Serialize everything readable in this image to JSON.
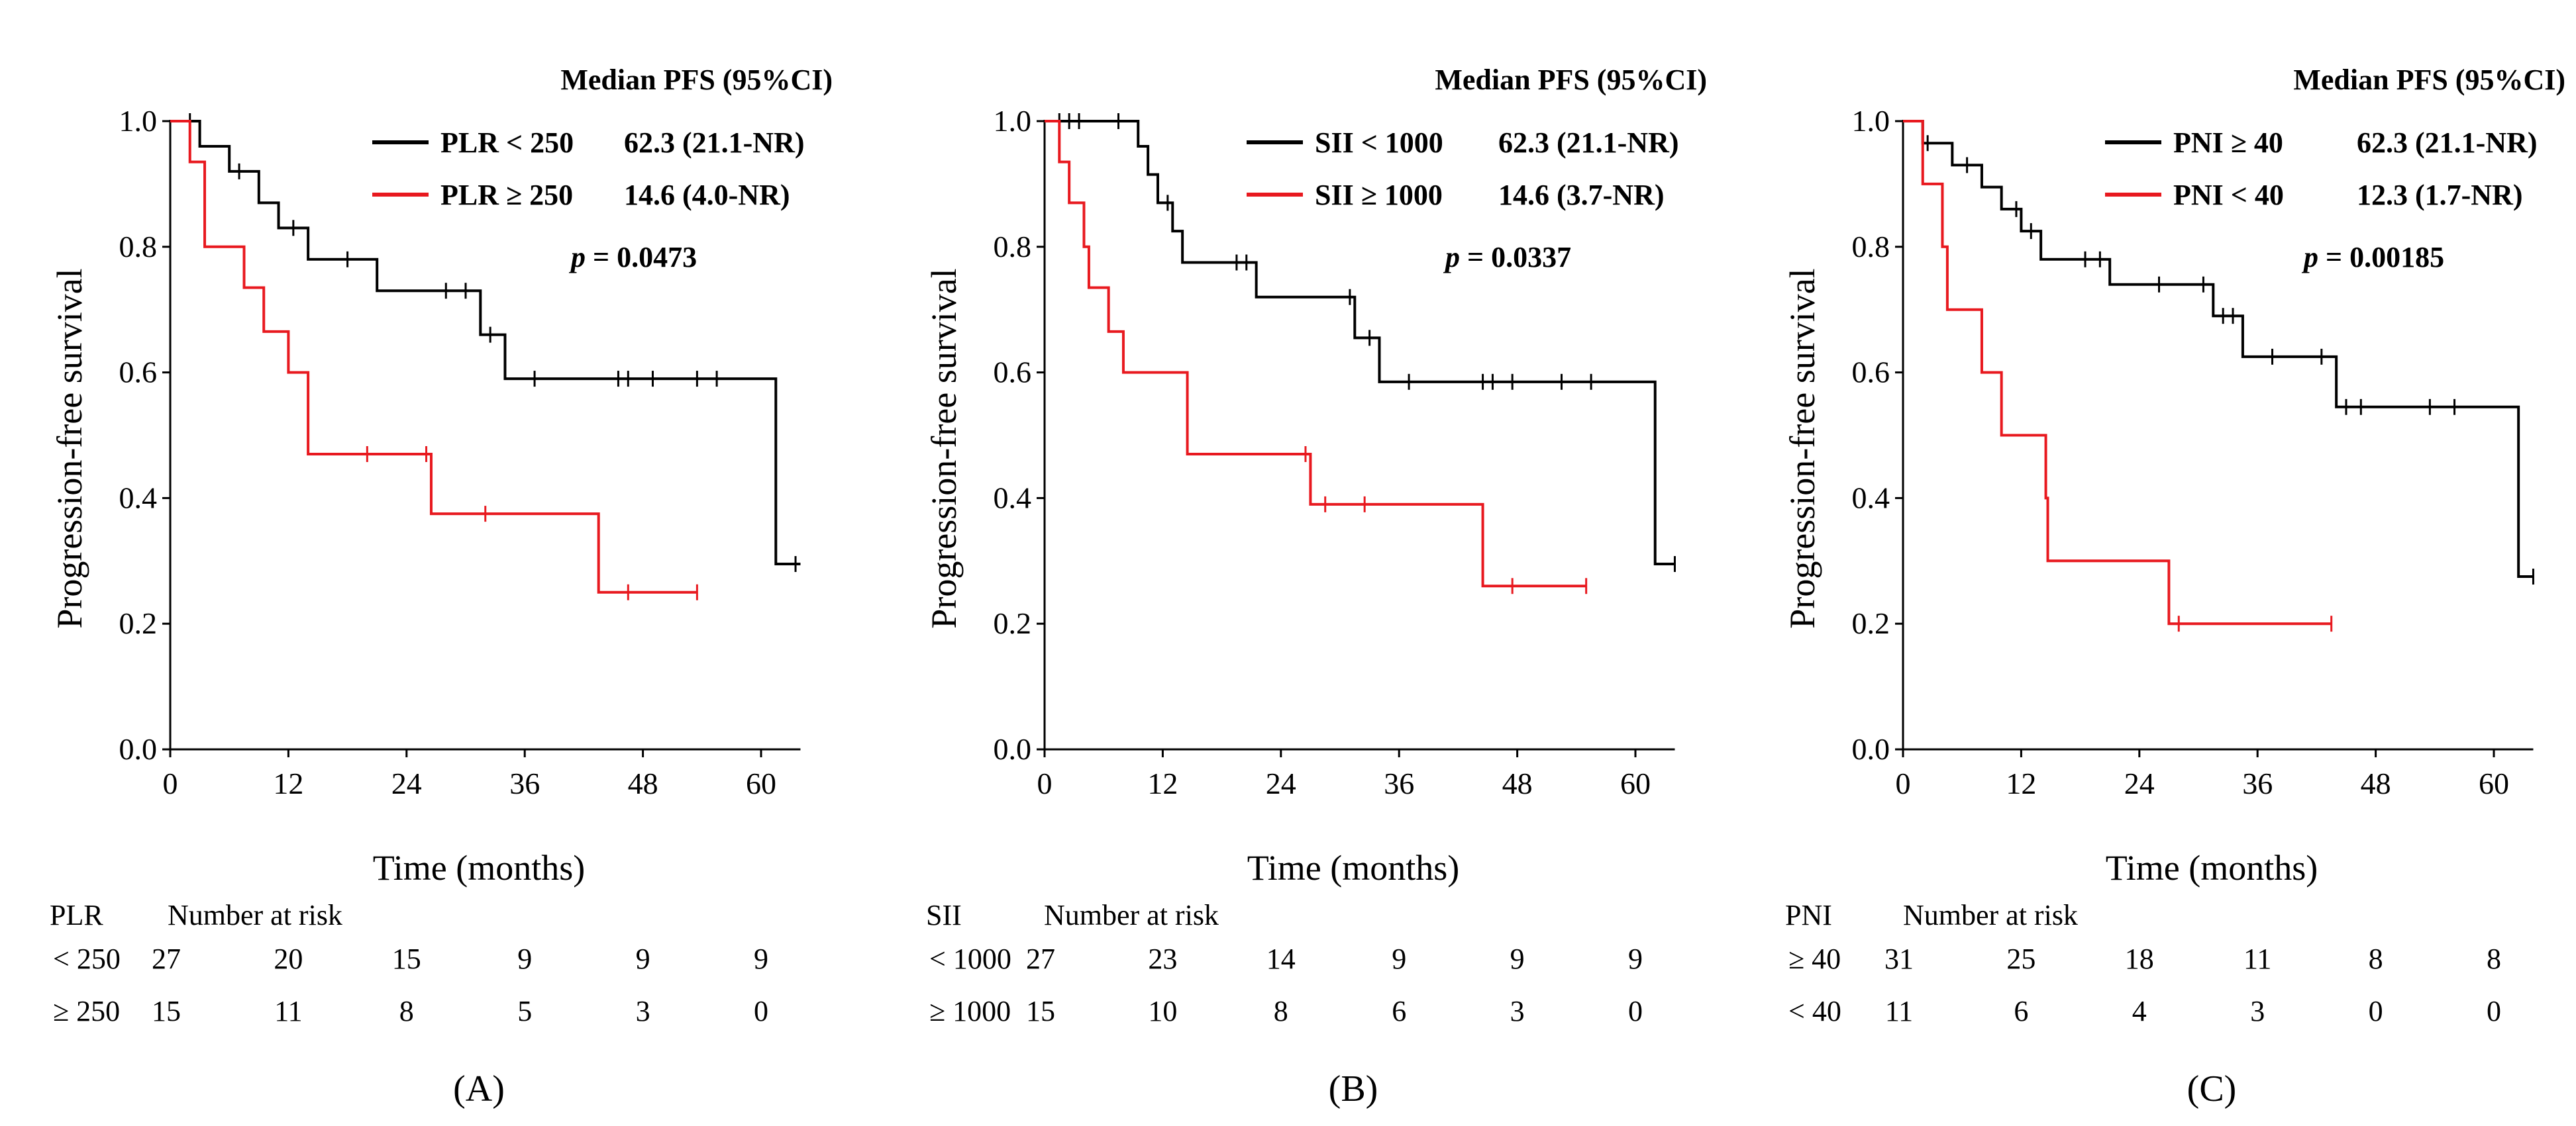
{
  "chart_data": [
    {
      "type": "line",
      "subtype": "kaplan-meier",
      "panel_label": "(A)",
      "xlabel": "Time (months)",
      "ylabel": "Progression-free survival",
      "xlim": [
        0,
        64
      ],
      "ylim": [
        0,
        1.0
      ],
      "x_ticks": [
        "0",
        "12",
        "24",
        "36",
        "48",
        "60"
      ],
      "y_ticks": [
        "0.0",
        "0.2",
        "0.4",
        "0.6",
        "0.8",
        "1.0"
      ],
      "legend_title": "Median PFS  (95%CI)",
      "p_label": "p",
      "p_value": "= 0.0473",
      "series": [
        {
          "name": "PLR < 250",
          "median": "62.3 (21.1-NR)",
          "color": "#000000",
          "steps": [
            [
              0,
              1.0
            ],
            [
              3,
              0.96
            ],
            [
              6,
              0.92
            ],
            [
              9,
              0.87
            ],
            [
              11,
              0.83
            ],
            [
              14,
              0.78
            ],
            [
              21,
              0.73
            ],
            [
              31.5,
              0.66
            ],
            [
              34,
              0.59
            ],
            [
              61.5,
              0.295
            ],
            [
              64,
              0.295
            ]
          ],
          "censors": [
            [
              2,
              1.0
            ],
            [
              7,
              0.92
            ],
            [
              12.5,
              0.83
            ],
            [
              18,
              0.78
            ],
            [
              28,
              0.73
            ],
            [
              30,
              0.73
            ],
            [
              32.5,
              0.66
            ],
            [
              37,
              0.59
            ],
            [
              45.5,
              0.59
            ],
            [
              46.5,
              0.59
            ],
            [
              49,
              0.59
            ],
            [
              53.5,
              0.59
            ],
            [
              55.5,
              0.59
            ],
            [
              63.5,
              0.295
            ]
          ]
        },
        {
          "name": "PLR ≥ 250",
          "median": "14.6 (4.0-NR)",
          "color": "#e8191f",
          "steps": [
            [
              0,
              1.0
            ],
            [
              2,
              0.935
            ],
            [
              3.5,
              0.8
            ],
            [
              7.5,
              0.735
            ],
            [
              9.5,
              0.665
            ],
            [
              12,
              0.6
            ],
            [
              14,
              0.47
            ],
            [
              26.5,
              0.375
            ],
            [
              43.5,
              0.25
            ],
            [
              53.5,
              0.25
            ]
          ],
          "censors": [
            [
              20,
              0.47
            ],
            [
              26,
              0.47
            ],
            [
              32,
              0.375
            ],
            [
              46.5,
              0.25
            ],
            [
              53.5,
              0.25
            ]
          ]
        }
      ],
      "risk_table": {
        "variable": "PLR",
        "header": "Number  at risk",
        "times": [
          0,
          12,
          24,
          36,
          48,
          60
        ],
        "rows": [
          {
            "label": "< 250",
            "values": [
              "27",
              "20",
              "15",
              "9",
              "9",
              "9"
            ]
          },
          {
            "label": "≥ 250",
            "values": [
              "15",
              "11",
              "8",
              "5",
              "3",
              "0"
            ]
          }
        ]
      }
    },
    {
      "type": "line",
      "subtype": "kaplan-meier",
      "panel_label": "(B)",
      "xlabel": "Time (months)",
      "ylabel": "Progression-free survival",
      "xlim": [
        0,
        64
      ],
      "ylim": [
        0,
        1.0
      ],
      "x_ticks": [
        "0",
        "12",
        "24",
        "36",
        "48",
        "60"
      ],
      "y_ticks": [
        "0.0",
        "0.2",
        "0.4",
        "0.6",
        "0.8",
        "1.0"
      ],
      "legend_title": "Median PFS  (95%CI)",
      "p_label": "p",
      "p_value": "= 0.0337",
      "series": [
        {
          "name": "SII < 1000",
          "median": "62.3 (21.1-NR)",
          "color": "#000000",
          "steps": [
            [
              0,
              1.0
            ],
            [
              9.5,
              0.96
            ],
            [
              10.5,
              0.915
            ],
            [
              11.5,
              0.87
            ],
            [
              13,
              0.825
            ],
            [
              14,
              0.775
            ],
            [
              21.5,
              0.72
            ],
            [
              31.5,
              0.655
            ],
            [
              34,
              0.585
            ],
            [
              62,
              0.295
            ],
            [
              64,
              0.295
            ]
          ],
          "censors": [
            [
              1.5,
              1.0
            ],
            [
              2.5,
              1.0
            ],
            [
              3.5,
              1.0
            ],
            [
              7.5,
              1.0
            ],
            [
              12.5,
              0.87
            ],
            [
              19.5,
              0.775
            ],
            [
              20.5,
              0.775
            ],
            [
              31,
              0.72
            ],
            [
              33,
              0.655
            ],
            [
              37,
              0.585
            ],
            [
              44.5,
              0.585
            ],
            [
              45.5,
              0.585
            ],
            [
              47.5,
              0.585
            ],
            [
              52.5,
              0.585
            ],
            [
              55.5,
              0.585
            ],
            [
              64,
              0.295
            ]
          ]
        },
        {
          "name": "SII ≥ 1000",
          "median": "14.6 (3.7-NR)",
          "color": "#e8191f",
          "steps": [
            [
              0,
              1.0
            ],
            [
              1.5,
              0.935
            ],
            [
              2.5,
              0.87
            ],
            [
              4,
              0.8
            ],
            [
              4.5,
              0.735
            ],
            [
              6.5,
              0.665
            ],
            [
              8,
              0.6
            ],
            [
              14.5,
              0.47
            ],
            [
              27,
              0.39
            ],
            [
              44.5,
              0.26
            ],
            [
              55,
              0.26
            ]
          ],
          "censors": [
            [
              26.5,
              0.47
            ],
            [
              28.5,
              0.39
            ],
            [
              32.5,
              0.39
            ],
            [
              47.5,
              0.26
            ],
            [
              55,
              0.26
            ]
          ]
        }
      ],
      "risk_table": {
        "variable": "SII",
        "header": "Number  at risk",
        "times": [
          0,
          12,
          24,
          36,
          48,
          60
        ],
        "rows": [
          {
            "label": "< 1000",
            "values": [
              "27",
              "23",
              "14",
              "9",
              "9",
              "9"
            ]
          },
          {
            "label": "≥ 1000",
            "values": [
              "15",
              "10",
              "8",
              "6",
              "3",
              "0"
            ]
          }
        ]
      }
    },
    {
      "type": "line",
      "subtype": "kaplan-meier",
      "panel_label": "(C)",
      "xlabel": "Time (months)",
      "ylabel": "Progression-free survival",
      "xlim": [
        0,
        64
      ],
      "ylim": [
        0,
        1.0
      ],
      "x_ticks": [
        "0",
        "12",
        "24",
        "36",
        "48",
        "60"
      ],
      "y_ticks": [
        "0.0",
        "0.2",
        "0.4",
        "0.6",
        "0.8",
        "1.0"
      ],
      "legend_title": "Median PFS  (95%CI)",
      "p_label": "p",
      "p_value": "= 0.00185",
      "series": [
        {
          "name": "PNI ≥ 40",
          "median": "62.3 (21.1-NR)",
          "color": "#000000",
          "steps": [
            [
              0,
              1.0
            ],
            [
              2,
              0.965
            ],
            [
              5,
              0.93
            ],
            [
              8,
              0.895
            ],
            [
              10,
              0.86
            ],
            [
              12,
              0.825
            ],
            [
              14,
              0.78
            ],
            [
              21,
              0.74
            ],
            [
              31.5,
              0.69
            ],
            [
              34.5,
              0.625
            ],
            [
              44,
              0.545
            ],
            [
              62.5,
              0.275
            ],
            [
              64,
              0.275
            ]
          ],
          "censors": [
            [
              2.5,
              0.965
            ],
            [
              6.5,
              0.93
            ],
            [
              11.5,
              0.86
            ],
            [
              13,
              0.825
            ],
            [
              18.5,
              0.78
            ],
            [
              20,
              0.78
            ],
            [
              26,
              0.74
            ],
            [
              30.5,
              0.74
            ],
            [
              32.5,
              0.69
            ],
            [
              33.5,
              0.69
            ],
            [
              37.5,
              0.625
            ],
            [
              42.5,
              0.625
            ],
            [
              45,
              0.545
            ],
            [
              46.5,
              0.545
            ],
            [
              53.5,
              0.545
            ],
            [
              56,
              0.545
            ],
            [
              64,
              0.275
            ]
          ]
        },
        {
          "name": "PNI < 40",
          "median": "12.3 (1.7-NR)",
          "color": "#e8191f",
          "steps": [
            [
              0,
              1.0
            ],
            [
              2,
              0.9
            ],
            [
              4,
              0.8
            ],
            [
              4.5,
              0.7
            ],
            [
              8,
              0.6
            ],
            [
              10,
              0.5
            ],
            [
              14.5,
              0.4
            ],
            [
              14.7,
              0.3
            ],
            [
              27,
              0.2
            ],
            [
              43.5,
              0.2
            ]
          ],
          "censors": [
            [
              28,
              0.2
            ],
            [
              43.5,
              0.2
            ]
          ]
        }
      ],
      "risk_table": {
        "variable": "PNI",
        "header": "Number  at risk",
        "times": [
          0,
          12,
          24,
          36,
          48,
          60
        ],
        "rows": [
          {
            "label": "≥ 40",
            "values": [
              "31",
              "25",
              "18",
              "11",
              "8",
              "8"
            ]
          },
          {
            "label": "< 40",
            "values": [
              "11",
              "6",
              "4",
              "3",
              "0",
              "0"
            ]
          }
        ]
      }
    }
  ]
}
